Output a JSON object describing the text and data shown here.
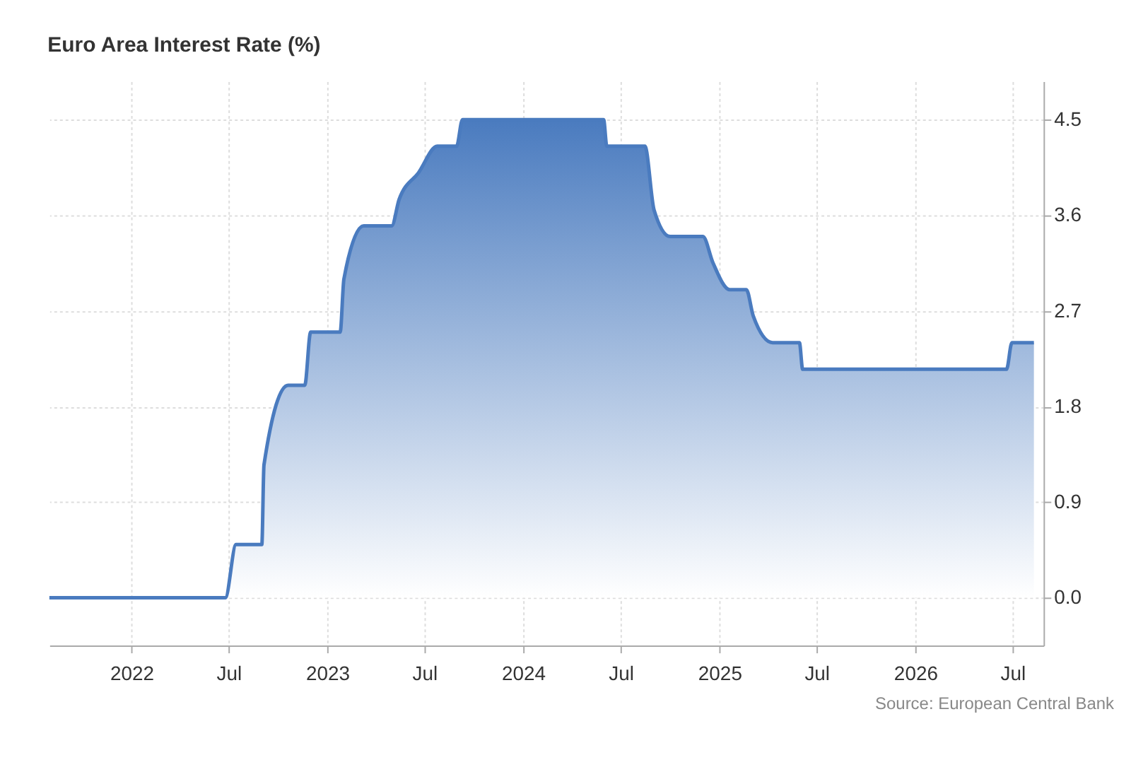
{
  "chart_data": {
    "type": "area",
    "title": "Euro Area Interest Rate (%)",
    "annotations": [
      "Source: European Central Bank"
    ],
    "series": [
      {
        "color": "#4a7bbf",
        "x": [
          "2021-08-01",
          "2022-06-25",
          "2022-07-15",
          "2022-09-01",
          "2022-09-05",
          "2022-10-20",
          "2022-11-20",
          "2022-12-01",
          "2023-01-25",
          "2023-02-01",
          "2023-03-10",
          "2023-05-01",
          "2023-05-15",
          "2023-06-20",
          "2023-07-25",
          "2023-08-30",
          "2023-09-10",
          "2024-05-30",
          "2024-06-05",
          "2024-08-15",
          "2024-09-01",
          "2024-10-01",
          "2024-12-01",
          "2024-12-20",
          "2025-01-20",
          "2025-02-20",
          "2025-03-05",
          "2025-04-10",
          "2025-05-30",
          "2025-06-05",
          "2026-06-20",
          "2026-06-30",
          "2026-08-10"
        ],
        "values": [
          0,
          0,
          0.5,
          0.5,
          1.25,
          2.0,
          2.0,
          2.5,
          2.5,
          3.0,
          3.5,
          3.5,
          3.75,
          4.0,
          4.25,
          4.25,
          4.5,
          4.5,
          4.25,
          4.25,
          3.65,
          3.4,
          3.4,
          3.15,
          2.9,
          2.9,
          2.65,
          2.4,
          2.4,
          2.15,
          2.15,
          2.4,
          2.4
        ]
      }
    ],
    "xlim": [
      "2021-08-01",
      "2026-08-28"
    ],
    "xticks": [
      {
        "value": "2022-01-01",
        "label": "2022"
      },
      {
        "value": "2022-07-01",
        "label": "Jul"
      },
      {
        "value": "2023-01-01",
        "label": "2023"
      },
      {
        "value": "2023-07-01",
        "label": "Jul"
      },
      {
        "value": "2024-01-01",
        "label": "2024"
      },
      {
        "value": "2024-07-01",
        "label": "Jul"
      },
      {
        "value": "2025-01-01",
        "label": "2025"
      },
      {
        "value": "2025-07-01",
        "label": "Jul"
      },
      {
        "value": "2026-01-01",
        "label": "2026"
      },
      {
        "value": "2026-07-01",
        "label": "Jul"
      }
    ],
    "ylim": [
      -0.45,
      4.86
    ],
    "yticks": [
      {
        "value": 0,
        "label": "0.0"
      },
      {
        "value": 0.9,
        "label": "0.9"
      },
      {
        "value": 1.8,
        "label": "1.8"
      },
      {
        "value": 2.7,
        "label": "2.7"
      },
      {
        "value": 3.6,
        "label": "3.6"
      },
      {
        "value": 4.5,
        "label": "4.5"
      }
    ],
    "grid": true
  }
}
